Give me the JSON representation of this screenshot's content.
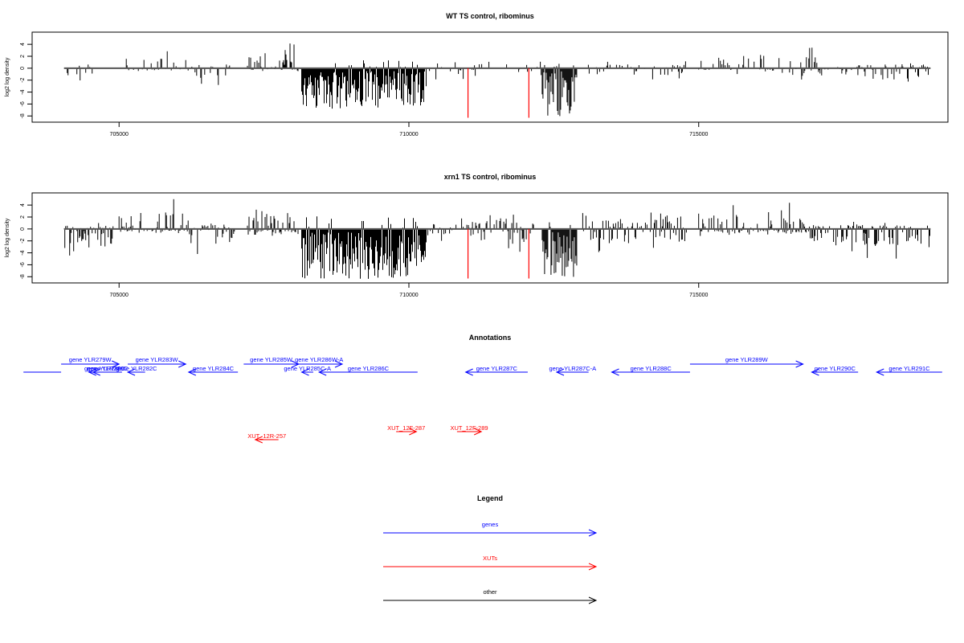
{
  "chart_data": [
    {
      "type": "bar",
      "title": "WT TS control, ribominus",
      "ylabel": "log2 log density",
      "xlim": [
        703500,
        719300
      ],
      "ylim": [
        -8.5,
        5.5
      ],
      "xticks": [
        705000,
        710000,
        715000
      ],
      "xtick_labels": [
        "705000",
        "710000",
        "715000"
      ],
      "yticks": [
        4,
        2,
        0,
        -2,
        -4,
        -6,
        -8
      ],
      "ytick_labels": [
        "4",
        "2",
        "0",
        "-2",
        "-4",
        "-6",
        "-8"
      ],
      "baseline": 0,
      "highlight_color": "#ff0000",
      "highlights": [
        {
          "x": 711020,
          "y": -8.3
        },
        {
          "x": 712070,
          "y": -8.3
        }
      ],
      "regions": [
        {
          "start": 704050,
          "end": 704550,
          "max": 1.2,
          "min": -2.2,
          "density": 0.2
        },
        {
          "start": 705000,
          "end": 706200,
          "max": 3.0,
          "min": -0.8,
          "density": 0.3
        },
        {
          "start": 706200,
          "end": 707000,
          "max": 1.2,
          "min": -3.0,
          "density": 0.3
        },
        {
          "start": 707200,
          "end": 708100,
          "max": 4.6,
          "min": -0.5,
          "density": 0.7
        },
        {
          "start": 708150,
          "end": 710300,
          "max": 1.5,
          "min": -6.8,
          "density": 1.0,
          "neg": true
        },
        {
          "start": 710300,
          "end": 712300,
          "max": 2.0,
          "min": -2.0,
          "density": 0.2
        },
        {
          "start": 712300,
          "end": 712900,
          "max": 0.8,
          "min": -8.2,
          "density": 1.0,
          "neg": true
        },
        {
          "start": 713000,
          "end": 714800,
          "max": 1.2,
          "min": -2.2,
          "density": 0.25
        },
        {
          "start": 715000,
          "end": 716400,
          "max": 3.2,
          "min": -1.2,
          "density": 0.35
        },
        {
          "start": 716400,
          "end": 717400,
          "max": 3.6,
          "min": -2.2,
          "density": 0.35
        },
        {
          "start": 717400,
          "end": 718600,
          "max": 1.2,
          "min": -3.5,
          "density": 0.45
        },
        {
          "start": 718600,
          "end": 719000,
          "max": 1.0,
          "min": -4.0,
          "density": 0.6
        }
      ]
    },
    {
      "type": "bar",
      "title": "xrn1 TS control, ribominus",
      "ylabel": "log2 log density",
      "xlim": [
        703500,
        719300
      ],
      "ylim": [
        -8.5,
        5.5
      ],
      "xticks": [
        705000,
        710000,
        715000
      ],
      "xtick_labels": [
        "705000",
        "710000",
        "715000"
      ],
      "yticks": [
        4,
        2,
        0,
        -2,
        -4,
        -6,
        -8
      ],
      "ytick_labels": [
        "4",
        "2",
        "0",
        "-2",
        "-4",
        "-6",
        "-8"
      ],
      "baseline": 0,
      "highlight_color": "#ff0000",
      "highlights": [
        {
          "x": 711020,
          "y": -8.3
        },
        {
          "x": 712070,
          "y": -8.3
        }
      ],
      "regions": [
        {
          "start": 704050,
          "end": 705000,
          "max": 1.0,
          "min": -4.5,
          "density": 0.6
        },
        {
          "start": 705000,
          "end": 706200,
          "max": 5.2,
          "min": -0.8,
          "density": 0.7
        },
        {
          "start": 706200,
          "end": 707000,
          "max": 1.0,
          "min": -4.5,
          "density": 0.6
        },
        {
          "start": 707200,
          "end": 708100,
          "max": 4.6,
          "min": -1.2,
          "density": 0.8
        },
        {
          "start": 708150,
          "end": 710300,
          "max": 2.2,
          "min": -8.4,
          "density": 1.0,
          "neg": true
        },
        {
          "start": 710300,
          "end": 711000,
          "max": 1.8,
          "min": -2.8,
          "density": 0.4
        },
        {
          "start": 711000,
          "end": 712200,
          "max": 2.5,
          "min": -4.5,
          "density": 0.6
        },
        {
          "start": 712300,
          "end": 712900,
          "max": 1.5,
          "min": -8.2,
          "density": 1.0,
          "neg": true
        },
        {
          "start": 713000,
          "end": 714800,
          "max": 2.8,
          "min": -4.0,
          "density": 0.6
        },
        {
          "start": 715000,
          "end": 716800,
          "max": 4.6,
          "min": -1.2,
          "density": 0.7
        },
        {
          "start": 716800,
          "end": 718600,
          "max": 1.2,
          "min": -5.5,
          "density": 0.7
        },
        {
          "start": 718600,
          "end": 719000,
          "max": 1.0,
          "min": -4.5,
          "density": 0.7
        }
      ]
    }
  ],
  "annotations": {
    "title": "Annotations",
    "gene_color": "#0000ff",
    "xut_color": "#ff0000",
    "genes": [
      {
        "label": "",
        "start": 703350,
        "end": 704000,
        "dir": "none",
        "row": 0
      },
      {
        "label": "gene YLR279W",
        "start": 704000,
        "end": 705000,
        "dir": "right",
        "row": 1
      },
      {
        "label": "gene YLR280C",
        "start": 704480,
        "end": 705030,
        "dir": "left",
        "row": 0
      },
      {
        "label": "gene YLR281C",
        "start": 704550,
        "end": 705050,
        "dir": "left",
        "row": 0
      },
      {
        "label": "gene YLR282C",
        "start": 705150,
        "end": 705450,
        "dir": "left",
        "row": 0
      },
      {
        "label": "gene YLR283W",
        "start": 705150,
        "end": 706150,
        "dir": "right",
        "row": 1
      },
      {
        "label": "gene YLR284C",
        "start": 706200,
        "end": 707050,
        "dir": "left",
        "row": 0
      },
      {
        "label": "gene YLR285W",
        "start": 707150,
        "end": 708100,
        "dir": "right",
        "row": 1
      },
      {
        "label": "gene YLR285C-A",
        "start": 708150,
        "end": 708350,
        "dir": "left",
        "row": 0
      },
      {
        "label": "gene YLR286W-A",
        "start": 708050,
        "end": 708850,
        "dir": "right",
        "row": 1
      },
      {
        "label": "gene YLR286C",
        "start": 708450,
        "end": 710150,
        "dir": "left",
        "row": 0
      },
      {
        "label": "gene YLR287C",
        "start": 710980,
        "end": 712050,
        "dir": "left",
        "row": 0
      },
      {
        "label": "gene YLR287C-A",
        "start": 712550,
        "end": 713100,
        "dir": "left",
        "row": 0
      },
      {
        "label": "gene YLR288C",
        "start": 713500,
        "end": 714850,
        "dir": "left",
        "row": 0
      },
      {
        "label": "gene YLR289W",
        "start": 714850,
        "end": 716800,
        "dir": "right",
        "row": 1
      },
      {
        "label": "gene YLR290C",
        "start": 716950,
        "end": 717750,
        "dir": "left",
        "row": 0
      },
      {
        "label": "gene YLR291C",
        "start": 718070,
        "end": 719200,
        "dir": "left",
        "row": 0
      }
    ],
    "xuts": [
      {
        "label": "XUT_12R-257",
        "start": 707350,
        "end": 707750,
        "dir": "left",
        "row": 2
      },
      {
        "label": "XUT_12F-287",
        "start": 709780,
        "end": 710130,
        "dir": "right",
        "row": 3
      },
      {
        "label": "XUT_12F-289",
        "start": 710830,
        "end": 711250,
        "dir": "right",
        "row": 3
      }
    ]
  },
  "legend": {
    "title": "Legend",
    "items": [
      {
        "label": "genes",
        "color": "#0000ff"
      },
      {
        "label": "XUTs",
        "color": "#ff0000"
      },
      {
        "label": "other",
        "color": "#000000"
      }
    ]
  }
}
